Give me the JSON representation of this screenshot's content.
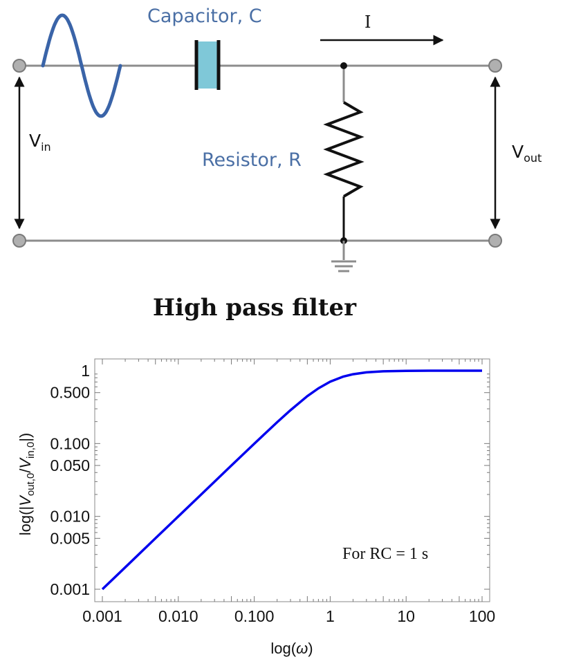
{
  "circuit": {
    "capacitor_label": "Capacitor, C",
    "resistor_label": "Resistor, R",
    "current_label": "I",
    "vin_main": "V",
    "vin_sub": "in",
    "vout_main": "V",
    "vout_sub": "out",
    "wire_color": "#8c8c8c",
    "sine_color": "#3a64a8",
    "capacitor_color": "#7fc8d8"
  },
  "caption": "High pass filter",
  "chart_data": {
    "type": "line",
    "x_scale": "log",
    "y_scale": "log",
    "xlim": [
      0.001,
      100
    ],
    "ylim": [
      0.001,
      1
    ],
    "x_ticks": [
      0.001,
      0.01,
      0.1,
      1,
      10,
      100
    ],
    "x_tick_labels": [
      "0.001",
      "0.010",
      "0.100",
      "1",
      "10",
      "100"
    ],
    "y_ticks": [
      0.001,
      0.005,
      0.01,
      0.05,
      0.1,
      0.5,
      1
    ],
    "y_tick_labels": [
      "0.001",
      "0.005",
      "0.010",
      "0.050",
      "0.100",
      "0.500",
      "1"
    ],
    "xlabel": "log(ω)",
    "ylabel": "log(|V_out,0/V_in,0|)",
    "ylabel_parts": {
      "pre": "log(|",
      "v1": "V",
      "s1": "out,0",
      "slash": "/",
      "v2": "V",
      "s2": "in,0",
      "post": "|)"
    },
    "annotation": "For RC = 1 s",
    "series": [
      {
        "color": "#0000ee",
        "x": [
          0.001,
          0.002,
          0.005,
          0.01,
          0.02,
          0.05,
          0.1,
          0.2,
          0.3,
          0.5,
          0.7,
          1,
          1.5,
          2,
          3,
          5,
          10,
          20,
          50,
          100
        ],
        "y": [
          0.001,
          0.002,
          0.005,
          0.01,
          0.02,
          0.0499,
          0.0995,
          0.196,
          0.287,
          0.447,
          0.573,
          0.707,
          0.832,
          0.894,
          0.949,
          0.981,
          0.995,
          0.999,
          1.0,
          1.0
        ]
      }
    ]
  }
}
